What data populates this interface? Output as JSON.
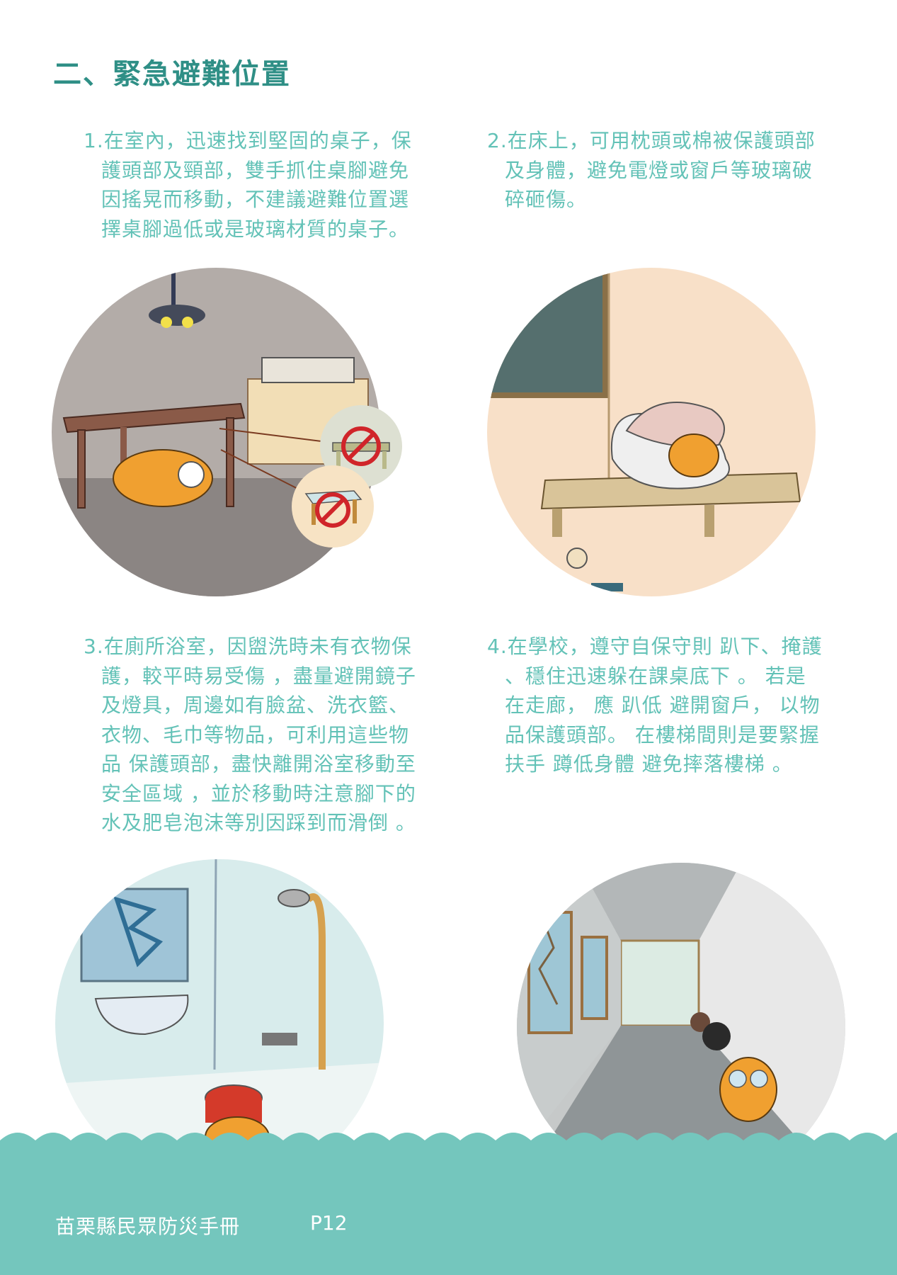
{
  "page_title": "二、緊急避難位置",
  "sections": [
    {
      "number": "1.",
      "lines": [
        "在室內，迅速找到堅固的桌子，保",
        "護頭部及頸部，雙手抓住桌腳避免",
        "因搖晃而移動，不建議避難位置選",
        "擇桌腳過低或是玻璃材質的桌子。"
      ]
    },
    {
      "number": "2.",
      "lines": [
        "在床上，可用枕頭或棉被保護頭部",
        "及身體，避免電燈或窗戶等玻璃破",
        "碎砸傷。"
      ]
    },
    {
      "number": "3.",
      "lines": [
        "在廁所浴室，因盥洗時未有衣物保",
        "護，較平時易受傷 ，盡量避開鏡子",
        "及燈具，周邊如有臉盆、洗衣籃、",
        "衣物、毛巾等物品，可利用這些物",
        "品 保護頭部，盡快離開浴室移動至",
        "安全區域 ，並於移動時注意腳下的",
        "水及肥皂泡沫等別因踩到而滑倒 。"
      ]
    },
    {
      "number": "4.",
      "lines": [
        "在學校，遵守自保守則 趴下、掩護",
        "、穩住迅速躲在課桌底下 。 若是",
        "在走廊， 應 趴低 避開窗戶， 以物",
        "品保護頭部。 在樓梯間則是要緊握",
        "扶手 蹲低身體 避免摔落樓梯 。"
      ]
    }
  ],
  "footer": {
    "book_title": "苗栗縣民眾防災手冊",
    "page_number": "P12"
  },
  "colors": {
    "title": "#2f8f86",
    "body_text": "#63c2b7",
    "footer_wave": "#74c6bd",
    "circle_kitchen": "#b3aca8",
    "circle_bedroom": "#f8e0c8",
    "circle_bathroom": "#d8ecec",
    "circle_school": "#c6c9c9"
  }
}
